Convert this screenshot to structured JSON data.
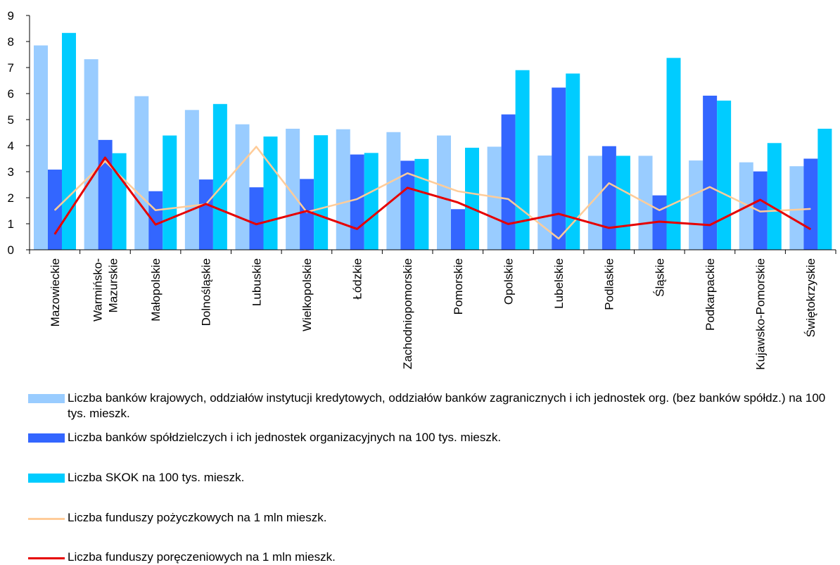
{
  "chart_data": {
    "type": "bar",
    "categories": [
      "Mazowieckie",
      "Warmińsko-\nMazurskie",
      "Małopolskie",
      "Dolnośląskie",
      "Lubuskie",
      "Wielkopolskie",
      "Łódzkie",
      "Zachodniopomorskie",
      "Pomorskie",
      "Opolskie",
      "Lubelskie",
      "Podlaskie",
      "Śląskie",
      "Podkarpackie",
      "Kujawsko-Pomorskie",
      "Świętokrzyskie"
    ],
    "ylim": [
      0,
      9
    ],
    "yticks": [
      0,
      1,
      2,
      3,
      4,
      5,
      6,
      7,
      8,
      9
    ],
    "grid": false,
    "legend_position": "bottom",
    "series": [
      {
        "name": "Liczba banków krajowych, oddziałów instytucji kredytowych, oddziałów banków zagranicznych  i ich jednostek org. (bez banków spółdz.) na 100 tys. mieszk.",
        "type": "bar",
        "color": "#99ccff",
        "values": [
          7.85,
          7.32,
          5.9,
          5.37,
          4.82,
          4.65,
          4.63,
          4.52,
          4.39,
          3.96,
          3.62,
          3.61,
          3.61,
          3.43,
          3.36,
          3.21
        ]
      },
      {
        "name": "Liczba banków spółdzielczych i ich jednostek organizacyjnych na 100 tys. mieszk.",
        "type": "bar",
        "color": "#3366ff",
        "values": [
          3.08,
          4.22,
          2.25,
          2.7,
          2.4,
          2.72,
          3.66,
          3.42,
          1.56,
          5.2,
          6.23,
          3.98,
          2.09,
          5.92,
          3.01,
          3.5
        ]
      },
      {
        "name": "Liczba SKOK na 100 tys. mieszk.",
        "type": "bar",
        "color": "#00ccff",
        "values": [
          8.33,
          3.71,
          4.39,
          5.6,
          4.35,
          4.4,
          3.72,
          3.49,
          3.92,
          6.9,
          6.77,
          3.61,
          7.37,
          5.73,
          4.1,
          4.65
        ]
      },
      {
        "name": "Liczba funduszy pożyczkowych na 1 mln mieszk.",
        "type": "line",
        "color": "#ffcc99",
        "values": [
          1.52,
          3.4,
          1.52,
          1.75,
          3.96,
          1.45,
          1.95,
          2.94,
          2.25,
          1.95,
          0.43,
          2.56,
          1.52,
          2.41,
          1.47,
          1.57
        ]
      },
      {
        "name": "Liczba funduszy poręczeniowych na 1 mln mieszk.",
        "type": "line",
        "color": "#e60000",
        "values": [
          0.6,
          3.54,
          0.97,
          1.76,
          0.98,
          1.49,
          0.8,
          2.38,
          1.82,
          0.99,
          1.38,
          0.84,
          1.08,
          0.95,
          1.92,
          0.79
        ]
      }
    ]
  }
}
